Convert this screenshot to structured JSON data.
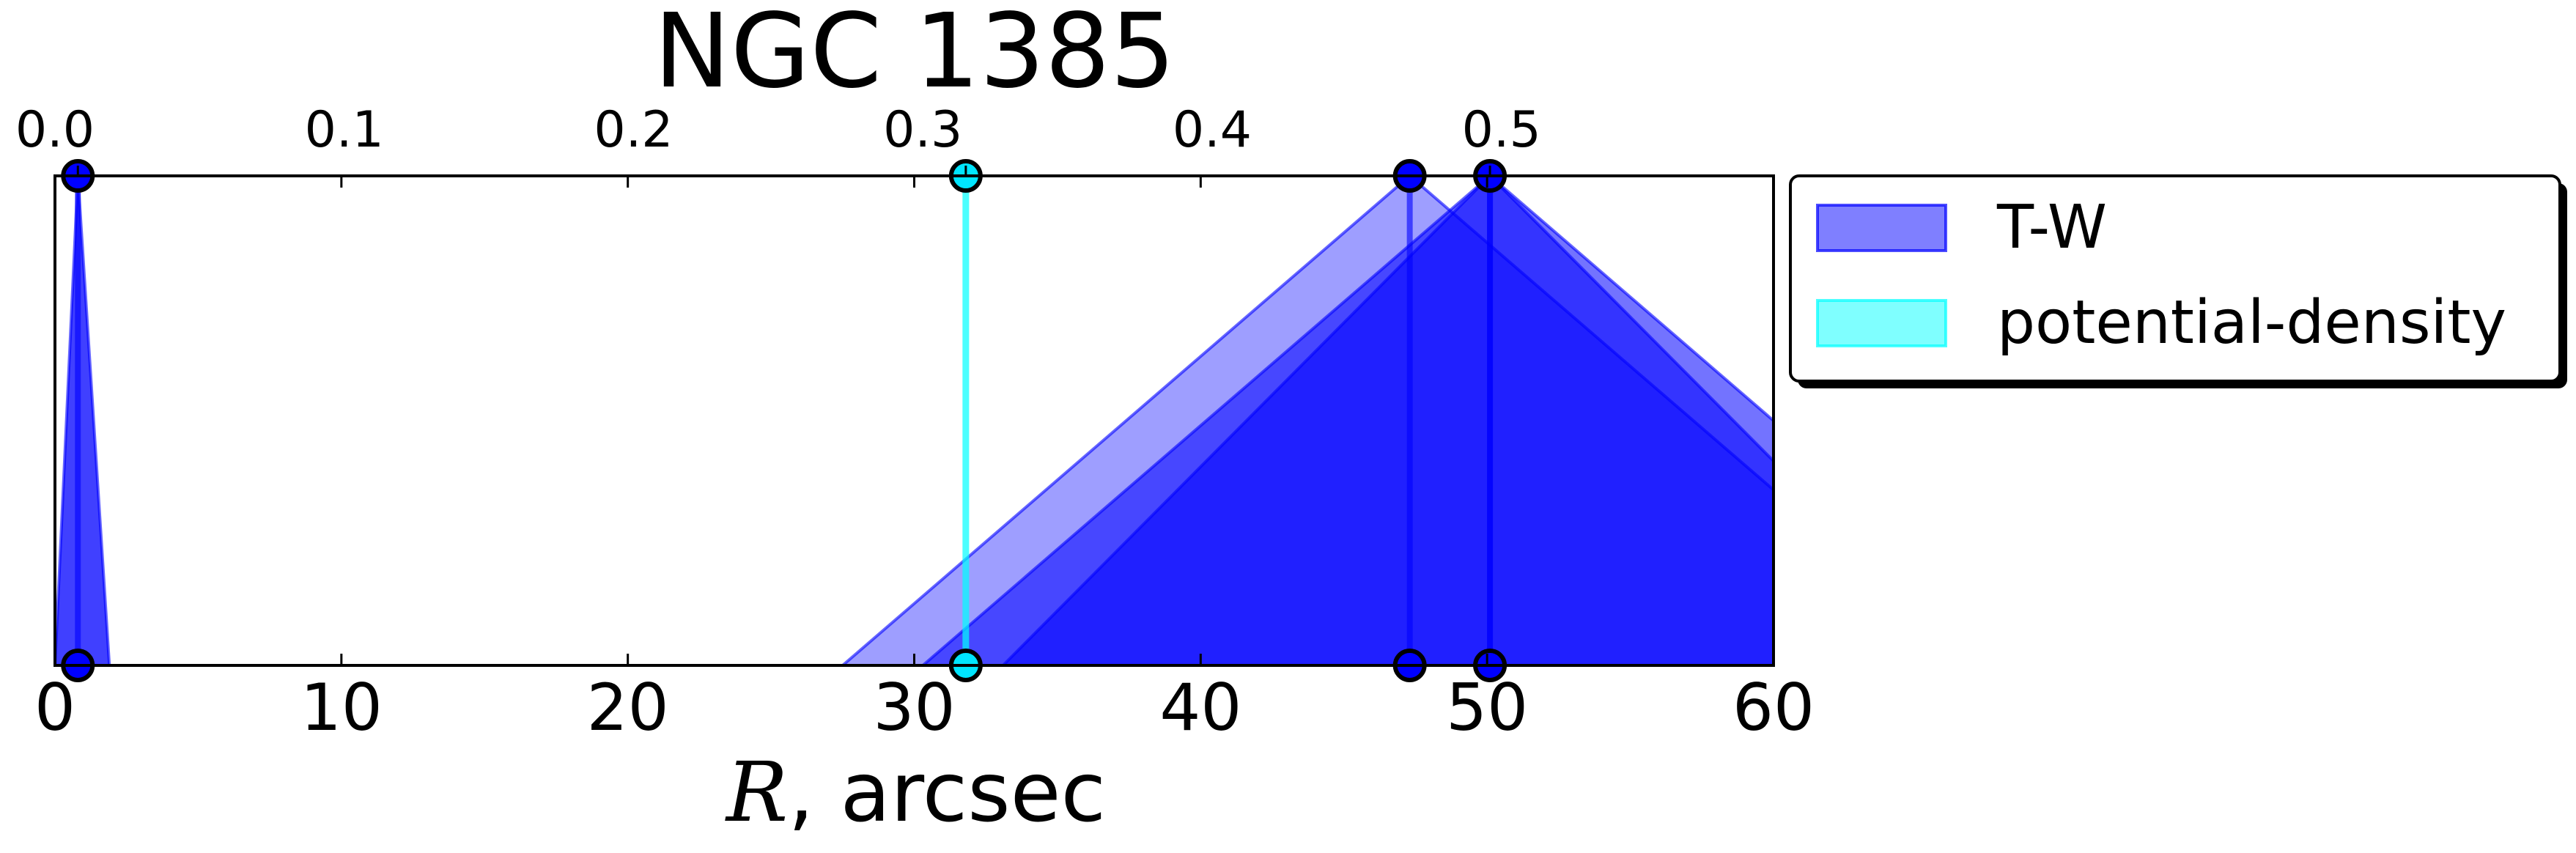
{
  "chart_data": {
    "type": "area",
    "title": "NGC 1385",
    "xlabel_math": "R",
    "xlabel_text": ", arcsec",
    "xlim": [
      0,
      60
    ],
    "x_ticks": [
      "0",
      "10",
      "20",
      "30",
      "40",
      "50",
      "60"
    ],
    "top_axis": {
      "ticks": [
        {
          "label": "0.0",
          "x": 0.0
        },
        {
          "label": "0.1",
          "x": 10.1
        },
        {
          "label": "0.2",
          "x": 20.2
        },
        {
          "label": "0.3",
          "x": 30.3
        },
        {
          "label": "0.4",
          "x": 40.4
        },
        {
          "label": "0.5",
          "x": 50.5
        }
      ],
      "extra_labels": [
        {
          "label": "0.0",
          "x": 0.8
        },
        {
          "label": "0.3",
          "x": 31.8
        },
        {
          "label": "0.5",
          "x": 50.1
        }
      ]
    },
    "legend": {
      "placement": "outside-right",
      "entries": [
        {
          "label": "T-W",
          "color": "#0000ff",
          "alpha": 0.5
        },
        {
          "label": "potential-density",
          "color": "#00ffff",
          "alpha": 0.5
        }
      ]
    },
    "series": [
      {
        "name": "T-W",
        "kind": "triangle",
        "center": 0.8,
        "left": 0.0,
        "right": 1.9,
        "color": "#0000ff",
        "alpha": 0.75
      },
      {
        "name": "T-W",
        "kind": "triangle",
        "center": 47.3,
        "left": 27.5,
        "right": 67.1,
        "color": "#0000ff",
        "alpha": 0.38
      },
      {
        "name": "T-W",
        "kind": "triangle",
        "center": 50.1,
        "left": 30.3,
        "right": 69.9,
        "color": "#0000ff",
        "alpha": 0.55
      },
      {
        "name": "T-W",
        "kind": "triangle",
        "center": 50.1,
        "left": 33.1,
        "right": 67.1,
        "color": "#0000ff",
        "alpha": 0.55
      },
      {
        "name": "potential-density",
        "kind": "line",
        "center": 31.8,
        "color": "#00ffff",
        "alpha": 0.7
      }
    ],
    "markers": [
      {
        "x": 0.8,
        "color": "#0000ff"
      },
      {
        "x": 31.8,
        "color": "#00e5ff"
      },
      {
        "x": 47.3,
        "color": "#0000ff"
      },
      {
        "x": 50.1,
        "color": "#0000ff"
      }
    ],
    "grid": false
  }
}
